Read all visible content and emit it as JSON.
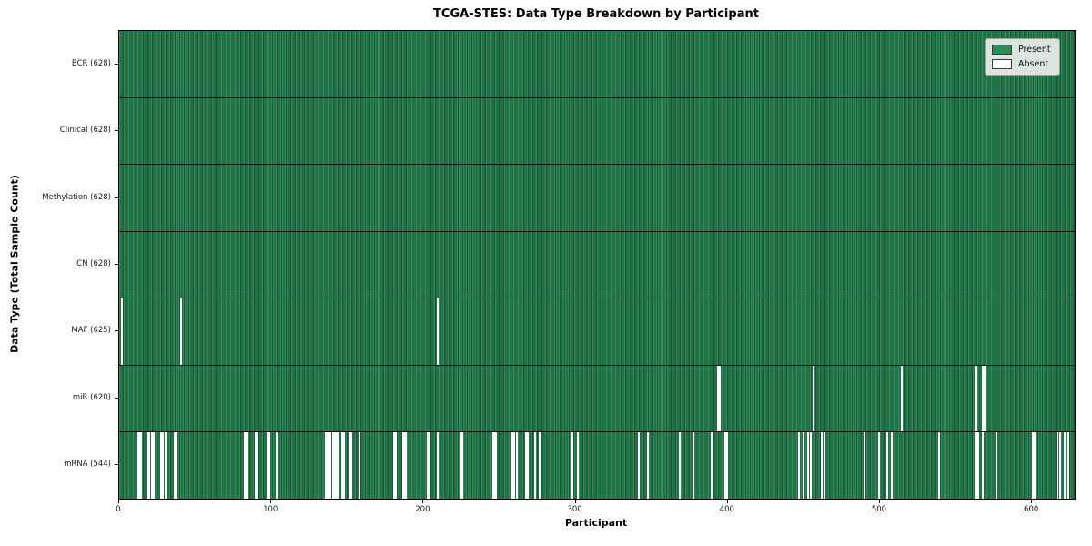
{
  "figure_title": "TCGA-STES: Data Type Breakdown by Participant",
  "colors": {
    "present": "#2e8b57",
    "present_dark_edge": "#1a5232",
    "absent": "#ffffff",
    "legend_background": "#e6eae6"
  },
  "chart_data": {
    "type": "heatmap",
    "title": "TCGA-STES: Data Type Breakdown by Participant",
    "xlabel": "Participant",
    "ylabel": "Data Type (Total Sample Count)",
    "n_participants": 628,
    "x_range": [
      0,
      628
    ],
    "xticks": [
      0,
      100,
      200,
      300,
      400,
      500,
      600
    ],
    "grid": false,
    "legend": {
      "position": "upper right",
      "entries": [
        {
          "label": "Present",
          "color": "#2e8b57"
        },
        {
          "label": "Absent",
          "color": "#ffffff"
        }
      ]
    },
    "rows": [
      {
        "data_type": "BCR",
        "label": "BCR (628)",
        "present_count": 628,
        "absent_participants": []
      },
      {
        "data_type": "Clinical",
        "label": "Clinical (628)",
        "present_count": 628,
        "absent_participants": []
      },
      {
        "data_type": "Methylation",
        "label": "Methylation (628)",
        "present_count": 628,
        "absent_participants": []
      },
      {
        "data_type": "CN",
        "label": "CN (628)",
        "present_count": 628,
        "absent_participants": []
      },
      {
        "data_type": "MAF",
        "label": "MAF (625)",
        "present_count": 625,
        "absent_participants": [
          1,
          40,
          209
        ]
      },
      {
        "data_type": "miR",
        "label": "miR (620)",
        "present_count": 620,
        "absent_participants": [
          393,
          394,
          456,
          514,
          562,
          563,
          567,
          568
        ]
      },
      {
        "data_type": "mRNA",
        "label": "mRNA (544)",
        "present_count": 544,
        "absent_participants": [
          12,
          13,
          14,
          18,
          19,
          21,
          22,
          27,
          28,
          30,
          36,
          37,
          82,
          83,
          89,
          90,
          97,
          98,
          103,
          135,
          136,
          137,
          138,
          140,
          141,
          142,
          143,
          146,
          147,
          151,
          152,
          157,
          180,
          181,
          186,
          187,
          188,
          202,
          203,
          209,
          224,
          225,
          245,
          246,
          247,
          257,
          258,
          259,
          261,
          267,
          268,
          273,
          276,
          297,
          301,
          341,
          347,
          368,
          377,
          389,
          398,
          399,
          446,
          449,
          452,
          454,
          461,
          463,
          489,
          499,
          504,
          507,
          538,
          562,
          563,
          564,
          567,
          576,
          600,
          601,
          616,
          618,
          621,
          623
        ]
      }
    ]
  }
}
